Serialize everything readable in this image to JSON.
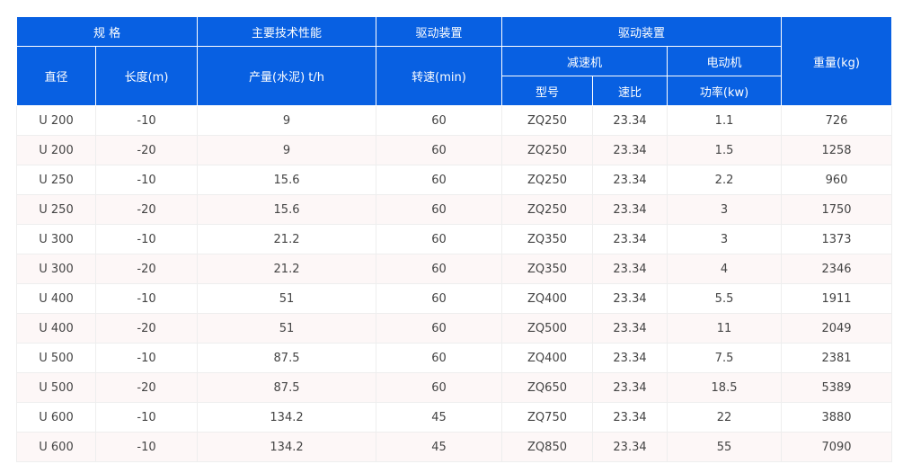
{
  "header": {
    "spec": "规 格",
    "tech": "主要技术性能",
    "drive1": "驱动装置",
    "drive2": "驱动装置",
    "weight": "重量(kg)",
    "diameter": "直径",
    "length": "长度(m)",
    "output": "产量(水泥) t/h",
    "speed": "转速(min)",
    "reducer": "减速机",
    "motor": "电动机",
    "model": "型号",
    "ratio": "速比",
    "power": "功率(kw)"
  },
  "colors": {
    "header_bg": "#0860e2",
    "stripe": "#fdf7f7"
  },
  "rows": [
    [
      "U 200",
      "-10",
      "9",
      "60",
      "ZQ250",
      "23.34",
      "1.1",
      "726"
    ],
    [
      "U 200",
      "-20",
      "9",
      "60",
      "ZQ250",
      "23.34",
      "1.5",
      "1258"
    ],
    [
      "U 250",
      "-10",
      "15.6",
      "60",
      "ZQ250",
      "23.34",
      "2.2",
      "960"
    ],
    [
      "U 250",
      "-20",
      "15.6",
      "60",
      "ZQ250",
      "23.34",
      "3",
      "1750"
    ],
    [
      "U 300",
      "-10",
      "21.2",
      "60",
      "ZQ350",
      "23.34",
      "3",
      "1373"
    ],
    [
      "U 300",
      "-20",
      "21.2",
      "60",
      "ZQ350",
      "23.34",
      "4",
      "2346"
    ],
    [
      "U 400",
      "-10",
      "51",
      "60",
      "ZQ400",
      "23.34",
      "5.5",
      "1911"
    ],
    [
      "U 400",
      "-20",
      "51",
      "60",
      "ZQ500",
      "23.34",
      "11",
      "2049"
    ],
    [
      "U 500",
      "-10",
      "87.5",
      "60",
      "ZQ400",
      "23.34",
      "7.5",
      "2381"
    ],
    [
      "U 500",
      "-20",
      "87.5",
      "60",
      "ZQ650",
      "23.34",
      "18.5",
      "5389"
    ],
    [
      "U 600",
      "-10",
      "134.2",
      "45",
      "ZQ750",
      "23.34",
      "22",
      "3880"
    ],
    [
      "U 600",
      "-10",
      "134.2",
      "45",
      "ZQ850",
      "23.34",
      "55",
      "7090"
    ]
  ]
}
